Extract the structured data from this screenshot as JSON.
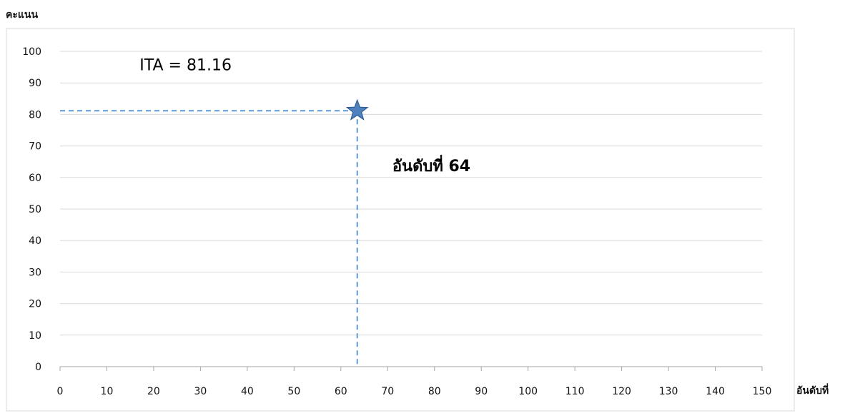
{
  "chart_data": {
    "type": "scatter",
    "ylabel": "คะแนน",
    "xlabel": "อันดับที่",
    "xlim": [
      0,
      150
    ],
    "ylim": [
      0,
      100
    ],
    "x_ticks": [
      0,
      10,
      20,
      30,
      40,
      50,
      60,
      70,
      80,
      90,
      100,
      110,
      120,
      130,
      140,
      150
    ],
    "y_ticks": [
      0,
      10,
      20,
      30,
      40,
      50,
      60,
      70,
      80,
      90,
      100
    ],
    "grid": "horizontal",
    "legend": "none",
    "series": [
      {
        "x": [
          63.5
        ],
        "y": [
          81.16
        ],
        "marker": "star"
      }
    ],
    "reference_lines": {
      "style": "dashed",
      "to_x": 63.5,
      "to_y": 81.16
    },
    "annotations": [
      {
        "text": "ITA = 81.16",
        "x": 17,
        "y": 94
      },
      {
        "text": "อันดับที่ 64",
        "x": 71,
        "y": 62,
        "bold": true
      }
    ],
    "colors": {
      "grid": "#d9d9d9",
      "axis": "#a6a6a6",
      "frame": "#d9d9d9",
      "guide": "#5b9bd5",
      "marker_fill": "#4f81bd",
      "marker_stroke": "#2e5f9a"
    }
  }
}
